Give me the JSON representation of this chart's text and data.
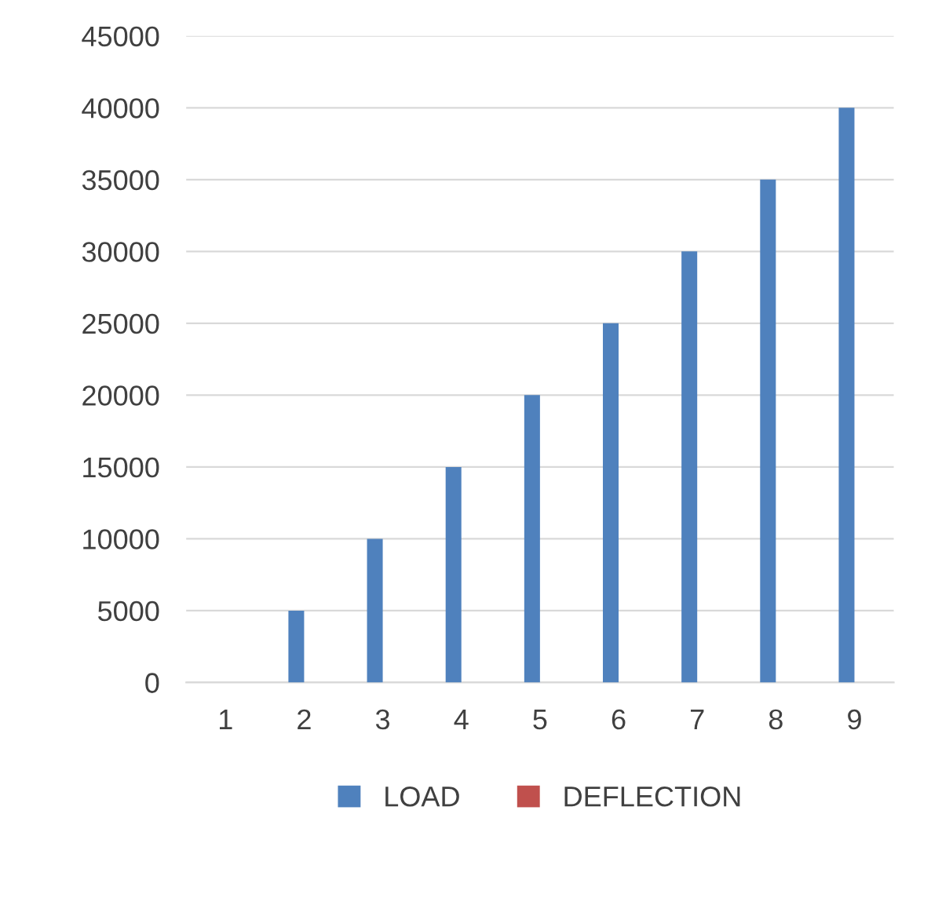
{
  "chart_data": {
    "type": "bar",
    "categories": [
      "1",
      "2",
      "3",
      "4",
      "5",
      "6",
      "7",
      "8",
      "9"
    ],
    "series": [
      {
        "name": "LOAD",
        "color": "#4f81bd",
        "values": [
          0,
          5000,
          10000,
          15000,
          20000,
          25000,
          30000,
          35000,
          40000
        ]
      },
      {
        "name": "DEFLECTION",
        "color": "#c0504d",
        "values": [
          0,
          0,
          0,
          0,
          0,
          0,
          0,
          0,
          0
        ]
      }
    ],
    "ylim": [
      0,
      45000
    ],
    "yticks": [
      0,
      5000,
      10000,
      15000,
      20000,
      25000,
      30000,
      35000,
      40000,
      45000
    ],
    "grid": "y",
    "legend": "bottom"
  }
}
